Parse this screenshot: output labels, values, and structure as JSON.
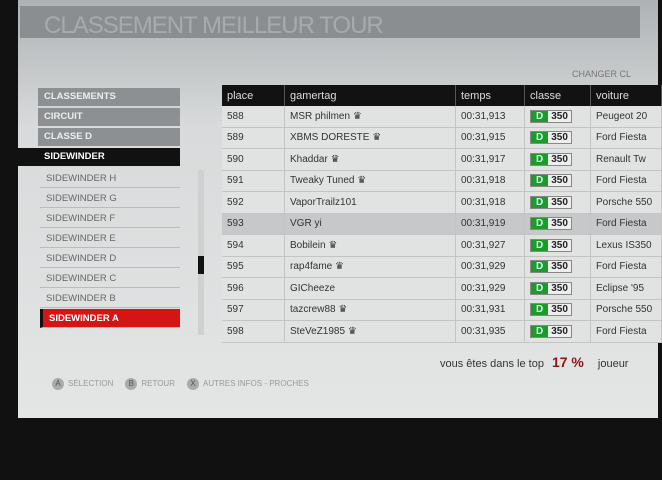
{
  "title": "CLASSEMENT MEILLEUR TOUR",
  "changer": "CHANGER CL",
  "menu": {
    "top": [
      "CLASSEMENTS",
      "CIRCUIT",
      "CLASSE D"
    ],
    "selected": "SIDEWINDER",
    "subs": [
      "SIDEWINDER H",
      "SIDEWINDER G",
      "SIDEWINDER F",
      "SIDEWINDER E",
      "SIDEWINDER D",
      "SIDEWINDER C",
      "SIDEWINDER B",
      "SIDEWINDER A"
    ]
  },
  "table": {
    "headers": [
      "place",
      "gamertag",
      "temps",
      "classe",
      "voiture"
    ],
    "rows": [
      {
        "place": "588",
        "tag": "MSR philmen",
        "crown": true,
        "time": "00:31,913",
        "cls": "D",
        "pi": "350",
        "car": "Peugeot 20"
      },
      {
        "place": "589",
        "tag": "XBMS DORESTE",
        "crown": true,
        "time": "00:31,915",
        "cls": "D",
        "pi": "350",
        "car": "Ford Fiesta"
      },
      {
        "place": "590",
        "tag": "Khaddar",
        "crown": true,
        "time": "00:31,917",
        "cls": "D",
        "pi": "350",
        "car": "Renault Tw"
      },
      {
        "place": "591",
        "tag": "Tweaky Tuned",
        "crown": true,
        "time": "00:31,918",
        "cls": "D",
        "pi": "350",
        "car": "Ford Fiesta"
      },
      {
        "place": "592",
        "tag": "VaporTrailz101",
        "crown": false,
        "time": "00:31,918",
        "cls": "D",
        "pi": "350",
        "car": "Porsche 550"
      },
      {
        "place": "593",
        "tag": "VGR yi",
        "crown": false,
        "time": "00:31,919",
        "cls": "D",
        "pi": "350",
        "car": "Ford Fiesta"
      },
      {
        "place": "594",
        "tag": "Bobilein",
        "crown": true,
        "time": "00:31,927",
        "cls": "D",
        "pi": "350",
        "car": "Lexus IS350"
      },
      {
        "place": "595",
        "tag": "rap4fame",
        "crown": true,
        "time": "00:31,929",
        "cls": "D",
        "pi": "350",
        "car": "Ford Fiesta"
      },
      {
        "place": "596",
        "tag": "GICheeze",
        "crown": false,
        "time": "00:31,929",
        "cls": "D",
        "pi": "350",
        "car": "Eclipse '95"
      },
      {
        "place": "597",
        "tag": "tazcrew88",
        "crown": true,
        "time": "00:31,931",
        "cls": "D",
        "pi": "350",
        "car": "Porsche 550"
      },
      {
        "place": "598",
        "tag": "SteVeZ1985",
        "crown": true,
        "time": "00:31,935",
        "cls": "D",
        "pi": "350",
        "car": "Ford Fiesta"
      }
    ],
    "highlight_place": "593",
    "class_color": "#1d9a2a"
  },
  "summary": {
    "text": "vous êtes dans le top",
    "percent": "17 %",
    "suffix": "joueur"
  },
  "footer": [
    {
      "key": "A",
      "label": "SÉLECTION"
    },
    {
      "key": "B",
      "label": "RETOUR"
    },
    {
      "key": "X",
      "label": "AUTRES INFOS - PROCHES"
    }
  ]
}
